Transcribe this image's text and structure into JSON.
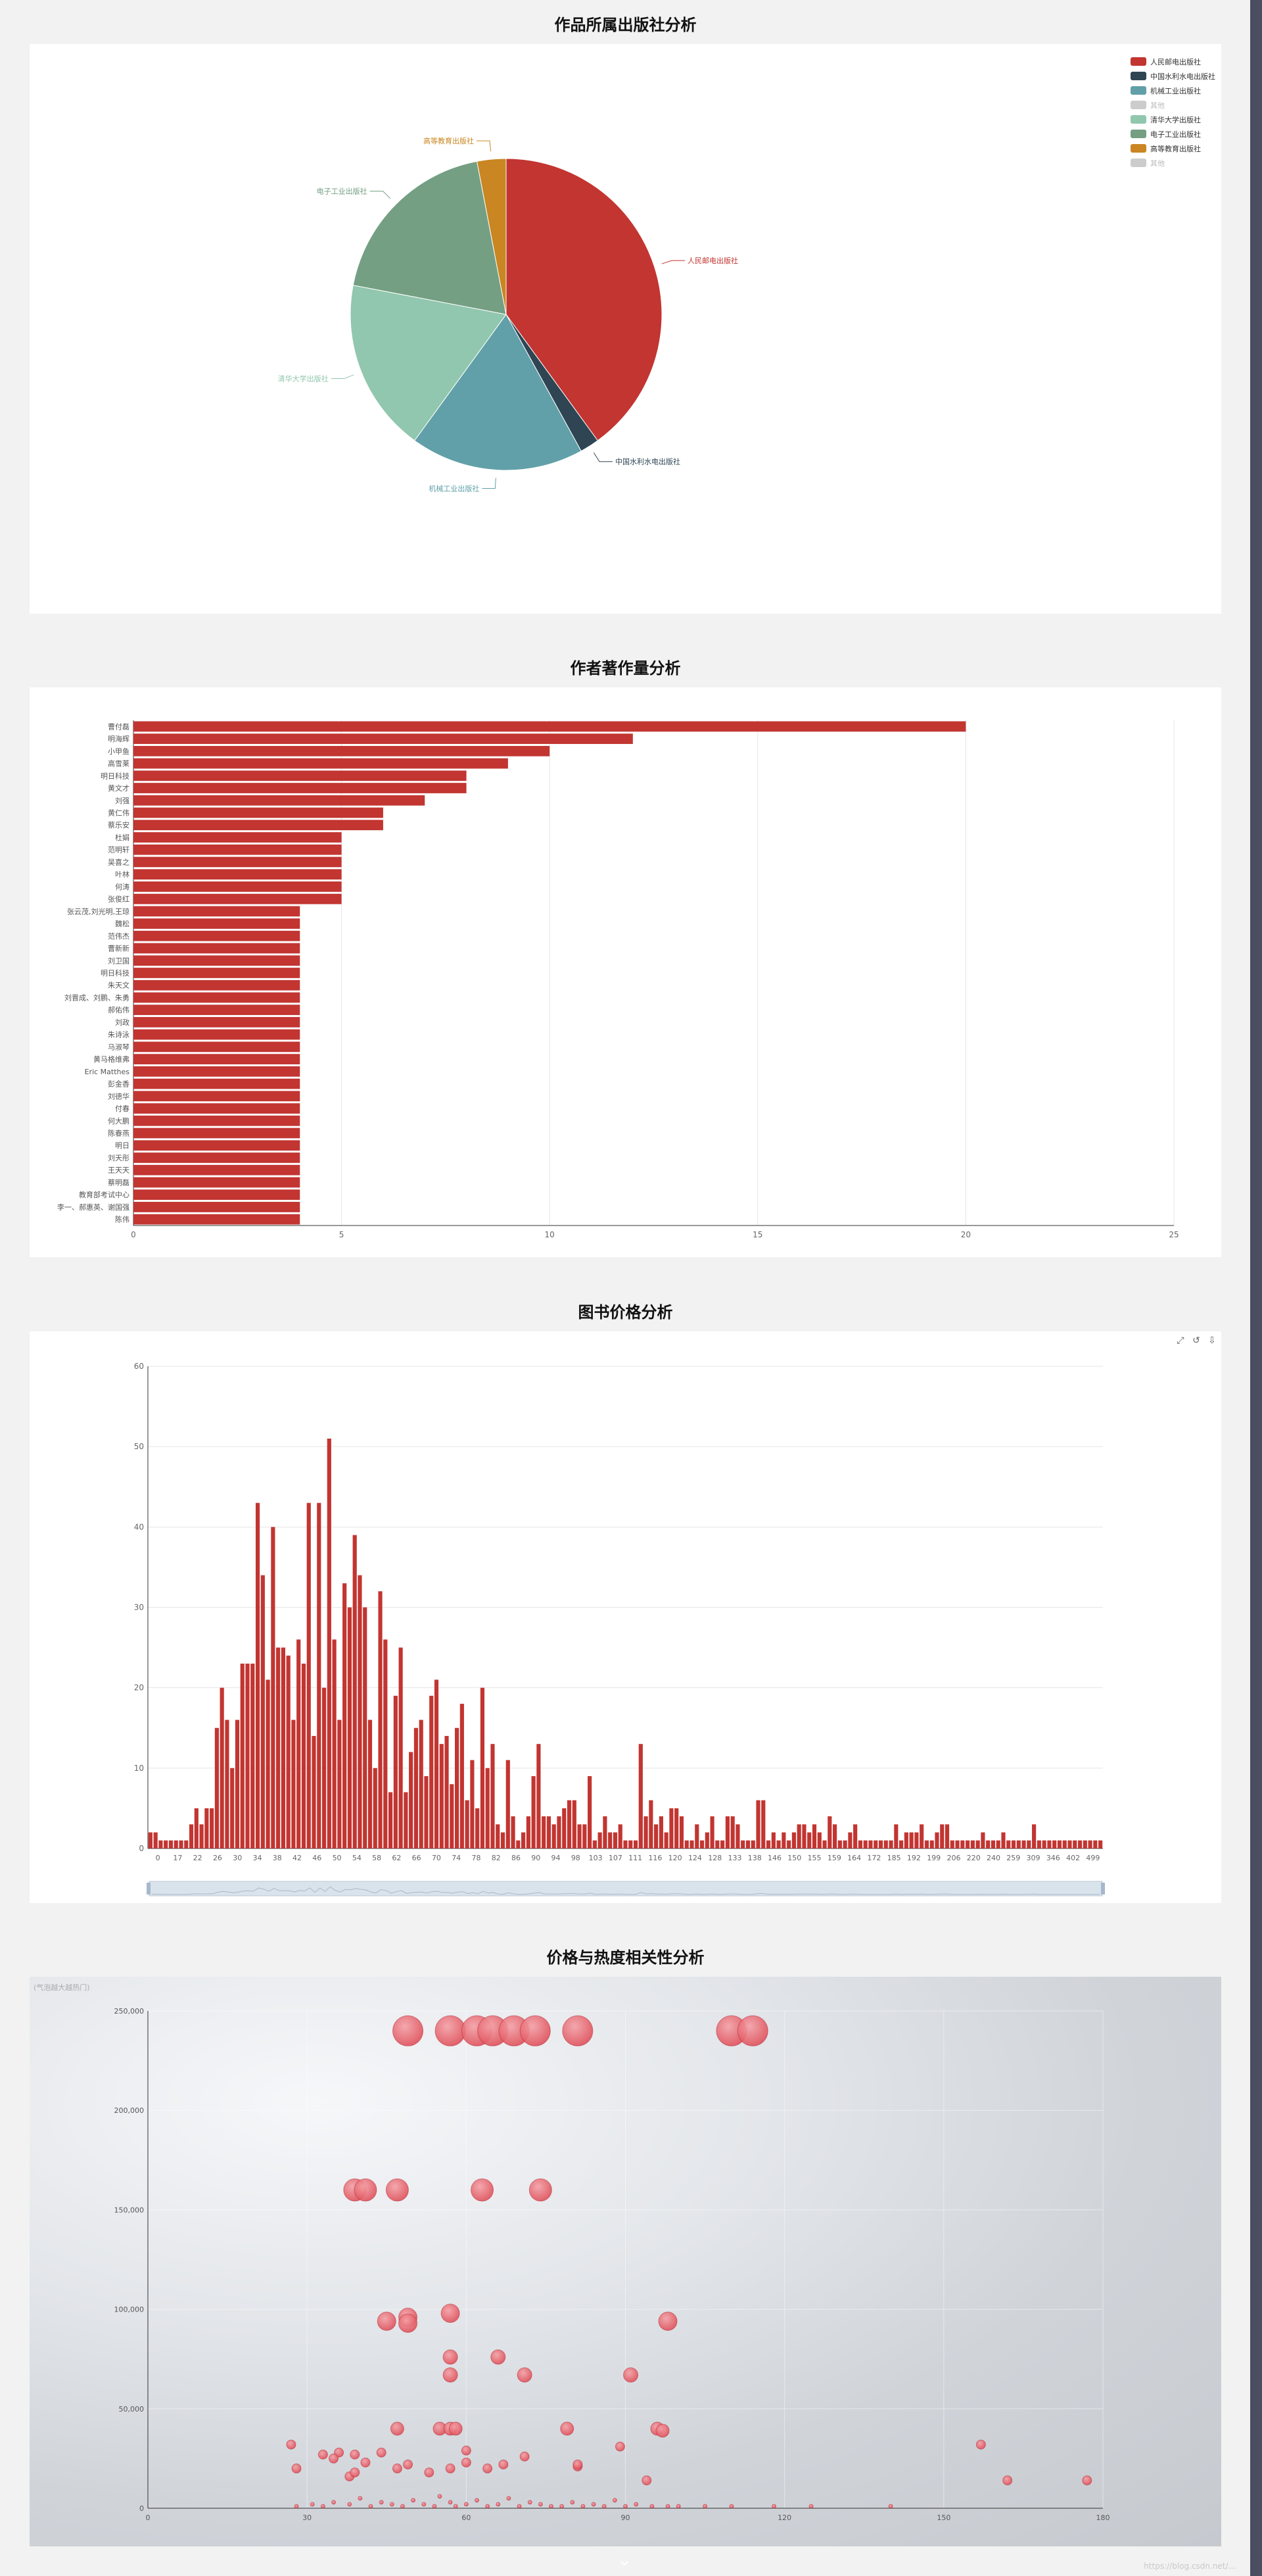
{
  "page": {
    "sections": [
      {
        "title": "作品所属出版社分析"
      },
      {
        "title": "作者著作量分析"
      },
      {
        "title": "图书价格分析"
      },
      {
        "title": "价格与热度相关性分析"
      }
    ],
    "watermark": "https://blog.csdn.net/..."
  },
  "chart_data": [
    {
      "type": "pie",
      "title": "作品所属出版社分析",
      "legend_position": "top-right",
      "slices": [
        {
          "name": "人民邮电出版社",
          "value": 40,
          "color": "#c23531"
        },
        {
          "name": "中国水利水电出版社",
          "value": 2,
          "color": "#2f4554"
        },
        {
          "name": "机械工业出版社",
          "value": 18,
          "color": "#61a0a8"
        },
        {
          "name": "其他",
          "value": 0,
          "color": "#cccccc"
        },
        {
          "name": "清华大学出版社",
          "value": 18,
          "color": "#91c7ae"
        },
        {
          "name": "电子工业出版社",
          "value": 19,
          "color": "#749f83"
        },
        {
          "name": "高等教育出版社",
          "value": 3,
          "color": "#ca8622"
        },
        {
          "name": "其他",
          "value": 0,
          "color": "#cccccc"
        }
      ]
    },
    {
      "type": "bar",
      "orientation": "horizontal",
      "title": "作者著作量分析",
      "xlim": [
        0,
        25
      ],
      "xticks": [
        0,
        5,
        10,
        15,
        20,
        25
      ],
      "color": "#c23531",
      "categories": [
        "曹付磊",
        "明海辉",
        "小甲鱼",
        "高雪莱",
        "明日科技",
        "黄文才",
        "刘强",
        "黄仁伟",
        "蔡乐安",
        "杜娟",
        "范明轩",
        "吴喜之",
        "叶林",
        "何涛",
        "张俊红",
        "张云茂,刘光明,王琼",
        "魏松",
        "范伟杰",
        "曹新新",
        "刘卫国",
        "明日科技",
        "朱天文",
        "刘晋成、刘鹏、朱勇",
        "郝佑伟",
        "刘政",
        "朱诗泳",
        "马淑琴",
        "黄马格维弗",
        "Eric Matthes",
        "彭金香",
        "刘德华",
        "付春",
        "何大鹏",
        "陈春燕",
        "明日",
        "刘天彤",
        "王天天",
        "蔡明磊",
        "教育部考试中心",
        "李一、郝惠英、谢国强",
        "陈伟"
      ],
      "values": [
        20,
        12,
        10,
        9,
        8,
        8,
        7,
        6,
        6,
        5,
        5,
        5,
        5,
        5,
        5,
        4,
        4,
        4,
        4,
        4,
        4,
        4,
        4,
        4,
        4,
        4,
        4,
        4,
        4,
        4,
        4,
        4,
        4,
        4,
        4,
        4,
        4,
        4,
        4,
        4,
        4
      ]
    },
    {
      "type": "bar",
      "title": "图书价格分析",
      "ylim": [
        0,
        60
      ],
      "yticks": [
        0,
        10,
        20,
        30,
        40,
        50,
        60
      ],
      "color": "#c23531",
      "x_tick_labels": [
        "0",
        "17",
        "22",
        "26",
        "30",
        "34",
        "38",
        "42",
        "46",
        "50",
        "54",
        "58",
        "62",
        "66",
        "70",
        "74",
        "78",
        "82",
        "86",
        "90",
        "94",
        "98",
        "103",
        "107",
        "111",
        "116",
        "120",
        "124",
        "128",
        "133",
        "138",
        "146",
        "150",
        "155",
        "159",
        "164",
        "172",
        "185",
        "192",
        "199",
        "206",
        "220",
        "240",
        "259",
        "309",
        "346",
        "402",
        "499"
      ],
      "values": [
        2,
        2,
        1,
        1,
        1,
        1,
        1,
        1,
        3,
        5,
        3,
        5,
        5,
        15,
        20,
        16,
        10,
        16,
        23,
        23,
        23,
        43,
        34,
        21,
        40,
        25,
        25,
        24,
        16,
        26,
        23,
        43,
        14,
        43,
        20,
        51,
        26,
        16,
        33,
        30,
        39,
        34,
        30,
        16,
        10,
        32,
        26,
        7,
        19,
        25,
        7,
        12,
        15,
        16,
        9,
        19,
        21,
        13,
        14,
        8,
        15,
        18,
        6,
        11,
        5,
        20,
        10,
        13,
        3,
        2,
        11,
        4,
        1,
        2,
        4,
        9,
        13,
        4,
        4,
        3,
        4,
        5,
        6,
        6,
        3,
        3,
        9,
        1,
        2,
        4,
        2,
        2,
        3,
        1,
        1,
        1,
        13,
        4,
        6,
        3,
        4,
        2,
        5,
        5,
        4,
        1,
        1,
        3,
        1,
        2,
        4,
        1,
        1,
        4,
        4,
        3,
        1,
        1,
        1,
        6,
        6,
        1,
        2,
        1,
        2,
        1,
        2,
        3,
        3,
        2,
        3,
        2,
        1,
        4,
        3,
        1,
        1,
        2,
        3,
        1,
        1,
        1,
        1,
        1,
        1,
        1,
        3,
        1,
        2,
        2,
        2,
        3,
        1,
        1,
        2,
        3,
        3,
        1,
        1,
        1,
        1,
        1,
        1,
        2,
        1,
        1,
        1,
        2,
        1,
        1,
        1,
        1,
        1,
        3,
        1,
        1,
        1,
        1,
        1,
        1,
        1,
        1,
        1,
        1,
        1,
        1,
        1
      ]
    },
    {
      "type": "scatter",
      "title": "价格与热度相关性分析",
      "subtitle": "(气泡越大越热门)",
      "xlim": [
        0,
        180
      ],
      "ylim": [
        0,
        250000
      ],
      "xticks": [
        0,
        30,
        60,
        90,
        120,
        150,
        180
      ],
      "yticks": [
        0,
        50000,
        100000,
        150000,
        200000,
        250000
      ],
      "ytick_labels": [
        "0",
        "50,000",
        "100,000",
        "150,000",
        "200,000",
        "250,000"
      ],
      "color": "#e0525c",
      "points": [
        [
          49,
          240000
        ],
        [
          57,
          240000
        ],
        [
          62,
          240000
        ],
        [
          65,
          240000
        ],
        [
          69,
          240000
        ],
        [
          73,
          240000
        ],
        [
          81,
          240000
        ],
        [
          110,
          240000
        ],
        [
          114,
          240000
        ],
        [
          39,
          160000
        ],
        [
          41,
          160000
        ],
        [
          47,
          160000
        ],
        [
          63,
          160000
        ],
        [
          74,
          160000
        ],
        [
          45,
          94000
        ],
        [
          49,
          96000
        ],
        [
          49,
          93000
        ],
        [
          57,
          98000
        ],
        [
          98,
          94000
        ],
        [
          57,
          76000
        ],
        [
          66,
          76000
        ],
        [
          57,
          67000
        ],
        [
          71,
          67000
        ],
        [
          91,
          67000
        ],
        [
          27,
          32000
        ],
        [
          36,
          28000
        ],
        [
          39,
          27000
        ],
        [
          47,
          40000
        ],
        [
          55,
          40000
        ],
        [
          57,
          40000
        ],
        [
          58,
          40000
        ],
        [
          79,
          40000
        ],
        [
          96,
          40000
        ],
        [
          97,
          39000
        ],
        [
          157,
          32000
        ],
        [
          28,
          20000
        ],
        [
          33,
          27000
        ],
        [
          35,
          25000
        ],
        [
          38,
          16000
        ],
        [
          39,
          18000
        ],
        [
          41,
          23000
        ],
        [
          44,
          28000
        ],
        [
          47,
          20000
        ],
        [
          49,
          22000
        ],
        [
          53,
          18000
        ],
        [
          57,
          20000
        ],
        [
          60,
          29000
        ],
        [
          60,
          23000
        ],
        [
          64,
          20000
        ],
        [
          67,
          22000
        ],
        [
          71,
          26000
        ],
        [
          81,
          21000
        ],
        [
          81,
          22000
        ],
        [
          89,
          31000
        ],
        [
          94,
          14000
        ],
        [
          162,
          14000
        ],
        [
          177,
          14000
        ],
        [
          28,
          1000
        ],
        [
          31,
          2000
        ],
        [
          33,
          1000
        ],
        [
          35,
          3000
        ],
        [
          38,
          2000
        ],
        [
          40,
          5000
        ],
        [
          42,
          1000
        ],
        [
          44,
          3000
        ],
        [
          46,
          2000
        ],
        [
          48,
          1000
        ],
        [
          50,
          4000
        ],
        [
          52,
          2000
        ],
        [
          54,
          1000
        ],
        [
          55,
          6000
        ],
        [
          57,
          3000
        ],
        [
          58,
          1000
        ],
        [
          60,
          2000
        ],
        [
          62,
          4000
        ],
        [
          64,
          1000
        ],
        [
          66,
          2000
        ],
        [
          68,
          5000
        ],
        [
          70,
          1000
        ],
        [
          72,
          3000
        ],
        [
          74,
          2000
        ],
        [
          76,
          1000
        ],
        [
          78,
          1000
        ],
        [
          80,
          3000
        ],
        [
          82,
          1000
        ],
        [
          84,
          2000
        ],
        [
          86,
          1000
        ],
        [
          88,
          4000
        ],
        [
          90,
          1000
        ],
        [
          92,
          2000
        ],
        [
          95,
          1000
        ],
        [
          98,
          1000
        ],
        [
          100,
          1000
        ],
        [
          105,
          1000
        ],
        [
          110,
          1000
        ],
        [
          118,
          1000
        ],
        [
          125,
          1000
        ],
        [
          140,
          1000
        ]
      ]
    }
  ]
}
